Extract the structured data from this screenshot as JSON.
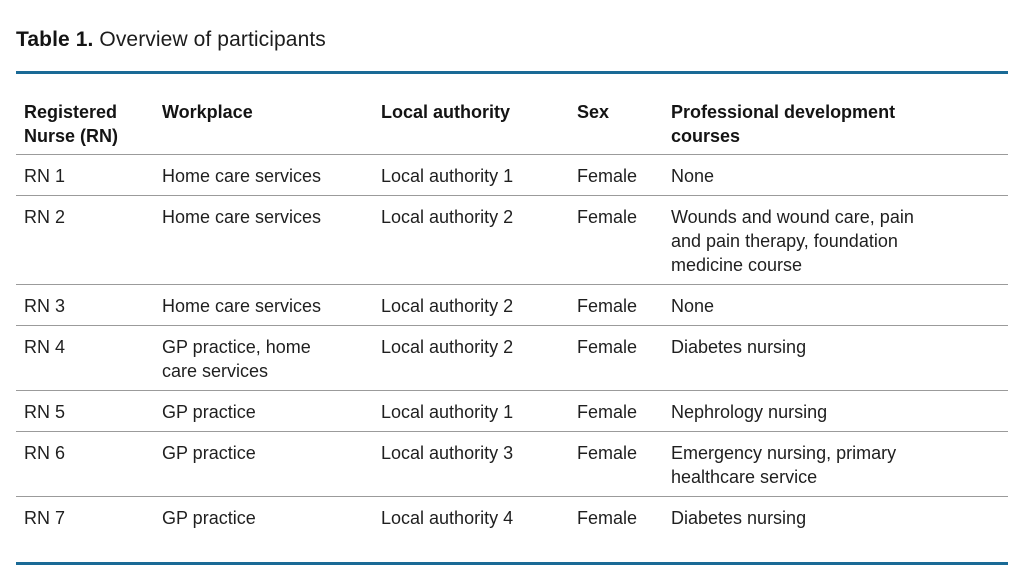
{
  "title": {
    "label": "Table 1.",
    "text": "Overview of participants"
  },
  "colors": {
    "accent_rule": "#1a6a96",
    "row_divider": "#9b9b9b",
    "text": "#1c1c1c"
  },
  "table": {
    "columns": [
      "Registered Nurse (RN)",
      "Workplace",
      "Local authority",
      "Sex",
      "Professional development courses"
    ],
    "rows": [
      {
        "cells": [
          "RN 1",
          "Home care services",
          "Local authority 1",
          "Female",
          "None"
        ]
      },
      {
        "cells": [
          "RN 2",
          "Home care services",
          "Local authority 2",
          "Female",
          "Wounds and wound care, pain and pain therapy, foundation medicine course"
        ]
      },
      {
        "cells": [
          "RN 3",
          "Home care services",
          "Local authority 2",
          "Female",
          "None"
        ]
      },
      {
        "cells": [
          "RN 4",
          "GP practice, home care services",
          "Local authority 2",
          "Female",
          "Diabetes nursing"
        ]
      },
      {
        "cells": [
          "RN 5",
          "GP practice",
          "Local authority 1",
          "Female",
          "Nephrology nursing"
        ]
      },
      {
        "cells": [
          "RN 6",
          "GP practice",
          "Local authority 3",
          "Female",
          "Emergency nursing, primary healthcare service"
        ]
      },
      {
        "cells": [
          "RN 7",
          "GP practice",
          "Local authority 4",
          "Female",
          "Diabetes nursing"
        ]
      }
    ]
  }
}
